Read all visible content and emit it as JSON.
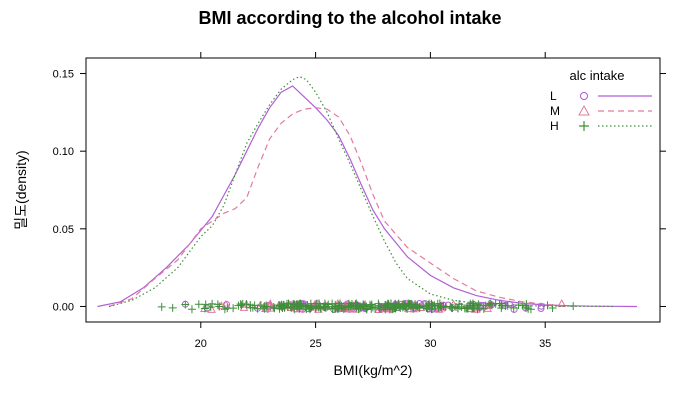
{
  "chart_data": {
    "type": "line",
    "title": "BMI according to the alcohol intake",
    "xlabel": "BMI(kg/m^2)",
    "ylabel": "밀도(density)",
    "xlim": [
      15,
      40
    ],
    "ylim": [
      -0.01,
      0.16
    ],
    "xticks": [
      20,
      25,
      30,
      35
    ],
    "yticks": [
      0.0,
      0.05,
      0.1,
      0.15
    ],
    "xtick_labels": [
      "20",
      "25",
      "30",
      "35"
    ],
    "ytick_labels": [
      "0.00",
      "0.05",
      "0.10",
      "0.15"
    ],
    "legend": {
      "title": "alc intake",
      "placement": "top-right"
    },
    "series": [
      {
        "name": "L",
        "color": "#b05fd8",
        "line_style": "solid",
        "marker": "circle",
        "x": [
          15.5,
          16.5,
          17.5,
          18.5,
          19.5,
          20.5,
          21.5,
          22.5,
          23.0,
          23.5,
          24.0,
          24.5,
          25.0,
          25.5,
          26.0,
          26.5,
          27.0,
          27.5,
          28.0,
          29.0,
          30.0,
          31.0,
          32.0,
          33.0,
          34.0,
          35.0,
          36.0,
          37.0,
          38.0,
          39.0
        ],
        "y": [
          0.0,
          0.003,
          0.012,
          0.025,
          0.04,
          0.058,
          0.085,
          0.115,
          0.128,
          0.138,
          0.142,
          0.135,
          0.128,
          0.12,
          0.11,
          0.095,
          0.078,
          0.062,
          0.05,
          0.032,
          0.02,
          0.012,
          0.007,
          0.004,
          0.002,
          0.001,
          0.0005,
          0.0002,
          0.0001,
          0.0
        ],
        "rug_range": [
          16.8,
          38.5
        ]
      },
      {
        "name": "M",
        "color": "#e27aa0",
        "line_style": "dashed",
        "marker": "triangle",
        "x": [
          16.0,
          17.0,
          18.0,
          19.0,
          19.5,
          20.0,
          20.5,
          21.0,
          21.5,
          22.0,
          22.5,
          23.0,
          23.5,
          24.0,
          24.5,
          25.0,
          25.5,
          26.0,
          26.5,
          27.0,
          27.5,
          28.0,
          29.0,
          30.0,
          31.0,
          32.0,
          33.0,
          34.0,
          35.0,
          36.0
        ],
        "y": [
          0.0,
          0.005,
          0.018,
          0.03,
          0.04,
          0.05,
          0.055,
          0.06,
          0.063,
          0.07,
          0.09,
          0.108,
          0.118,
          0.124,
          0.127,
          0.128,
          0.127,
          0.122,
          0.11,
          0.092,
          0.072,
          0.055,
          0.038,
          0.028,
          0.018,
          0.01,
          0.006,
          0.003,
          0.0015,
          0.0
        ],
        "rug_range": [
          17.0,
          36.5
        ]
      },
      {
        "name": "H",
        "color": "#3f8f3a",
        "line_style": "dotted",
        "marker": "plus",
        "x": [
          16.0,
          17.0,
          18.0,
          19.0,
          19.5,
          20.0,
          20.5,
          21.0,
          21.5,
          22.0,
          22.5,
          23.0,
          23.5,
          24.0,
          24.3,
          24.6,
          25.0,
          25.5,
          26.0,
          26.5,
          27.0,
          27.5,
          28.0,
          28.5,
          29.0,
          30.0,
          31.0,
          32.0,
          33.0,
          34.0,
          35.0,
          36.0,
          37.0,
          38.0
        ],
        "y": [
          0.0,
          0.004,
          0.012,
          0.025,
          0.035,
          0.045,
          0.052,
          0.065,
          0.085,
          0.105,
          0.118,
          0.13,
          0.14,
          0.146,
          0.148,
          0.146,
          0.138,
          0.125,
          0.108,
          0.092,
          0.075,
          0.058,
          0.042,
          0.028,
          0.018,
          0.008,
          0.004,
          0.002,
          0.001,
          0.0005,
          0.0003,
          0.0002,
          0.0001,
          0.0
        ],
        "rug_range": [
          17.2,
          37.5
        ]
      }
    ]
  }
}
